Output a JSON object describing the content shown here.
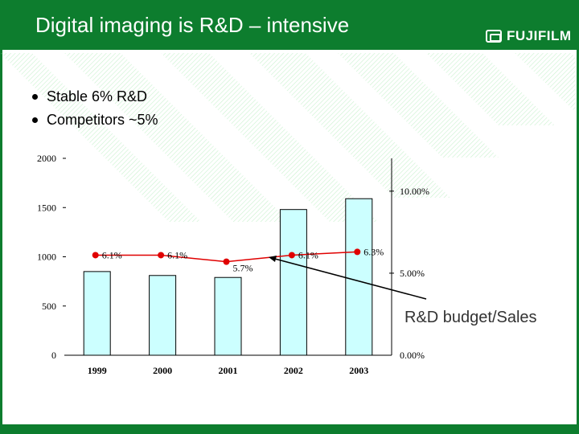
{
  "slide": {
    "title": "Digital imaging is R&D – intensive",
    "logo_text": "FUJIFILM",
    "logo_icon": "fuji-logo-icon",
    "bullets": [
      "Stable 6% R&D",
      "Competitors ~5%"
    ],
    "callout": "R&D budget/Sales",
    "colors": {
      "brand_green": "#0d7d2e",
      "bar_fill": "#ccffff",
      "line": "#e00000"
    }
  },
  "chart_data": {
    "type": "bar",
    "categories": [
      "1999",
      "2000",
      "2001",
      "2002",
      "2003"
    ],
    "series": [
      {
        "name": "",
        "type": "bar",
        "axis": "left",
        "values": [
          850,
          810,
          790,
          1480,
          1590
        ]
      },
      {
        "name": "",
        "type": "line",
        "axis": "right",
        "values": [
          6.1,
          6.1,
          5.7,
          6.1,
          6.3
        ],
        "labels": [
          "6.1%",
          "6.1%",
          "5.7%",
          "6.1%",
          "6.3%"
        ]
      }
    ],
    "ylim": [
      0,
      2000
    ],
    "yticks": [
      "0",
      "500",
      "1000",
      "1500",
      "2000"
    ],
    "ylim_right": [
      0,
      12
    ],
    "yticks_right": [
      "0.00%",
      "5.00%",
      "10.00%"
    ],
    "legend": "none",
    "grid": false
  }
}
